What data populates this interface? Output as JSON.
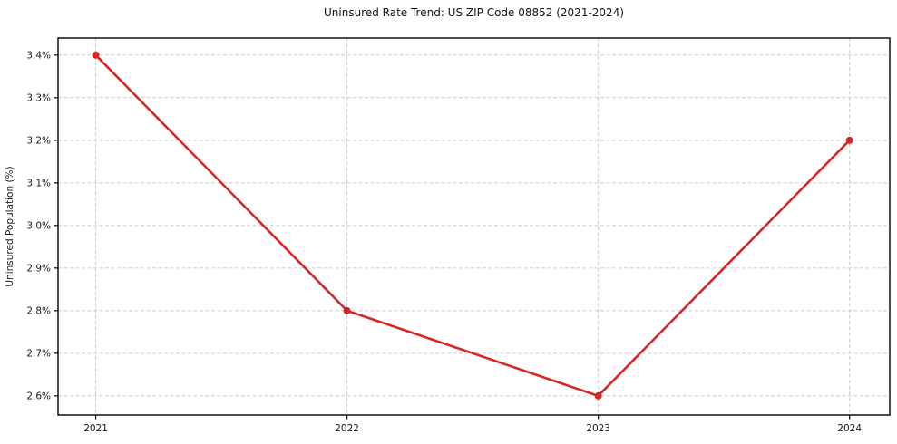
{
  "figure": {
    "background": "#ffffff"
  },
  "chart_data": {
    "type": "line",
    "title": "Uninsured Rate Trend: US ZIP Code 08852 (2021-2024)",
    "xlabel": "",
    "ylabel": "Uninsured Population (%)",
    "x": [
      2021,
      2022,
      2023,
      2024
    ],
    "values": [
      3.4,
      2.8,
      2.6,
      3.2
    ],
    "xtick_values": [
      2021,
      2022,
      2023,
      2024
    ],
    "xtick_labels": [
      "2021",
      "2022",
      "2023",
      "2024"
    ],
    "ytick_values": [
      2.6,
      2.7,
      2.8,
      2.9,
      3.0,
      3.1,
      3.2,
      3.3,
      3.4
    ],
    "ytick_labels": [
      "2.6%",
      "2.7%",
      "2.8%",
      "2.9%",
      "3.0%",
      "3.1%",
      "3.2%",
      "3.3%",
      "3.4%"
    ],
    "xlim": [
      2020.85,
      2024.16
    ],
    "ylim": [
      2.555,
      3.44
    ],
    "grid": "dashed-both",
    "legend": "none",
    "line_color": "#d62728",
    "marker": "circle",
    "grid_color": "#cccccc",
    "axis_color": "#000000",
    "text_color": "#1c1c1c"
  }
}
